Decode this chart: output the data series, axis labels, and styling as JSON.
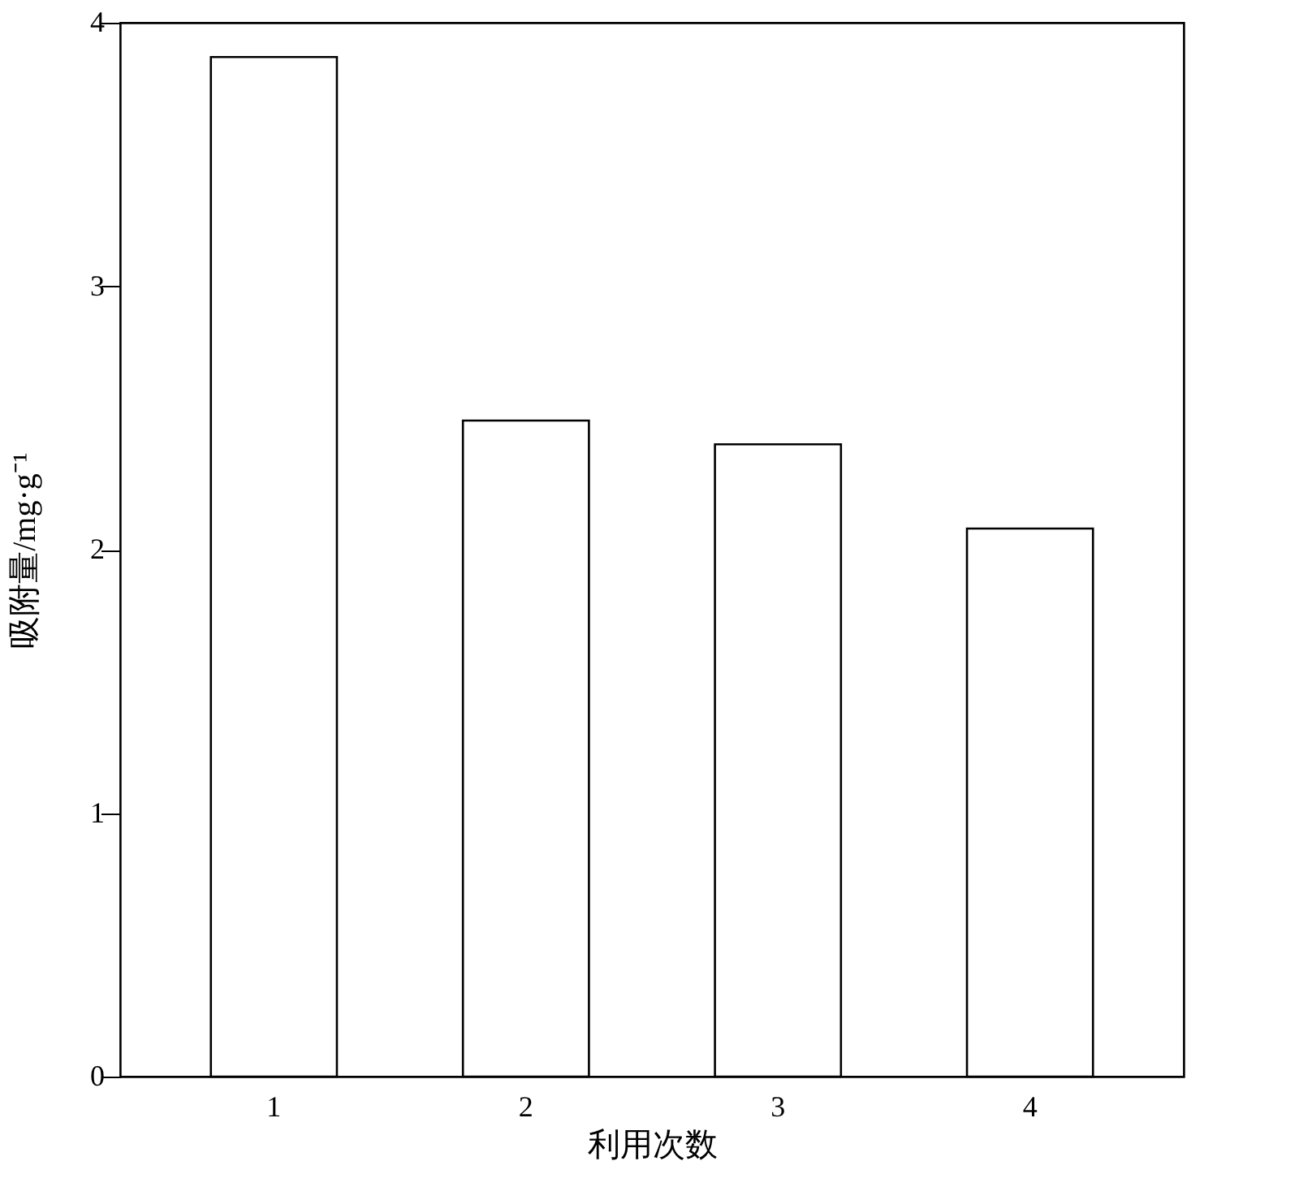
{
  "chart_data": {
    "type": "bar",
    "xlabel": "利用次数",
    "ylabel": "吸附量/mg·g⁻¹",
    "categories": [
      "1",
      "2",
      "3",
      "4"
    ],
    "series": [
      {
        "color": "#ffffff",
        "values": [
          3.87,
          2.49,
          2.4,
          2.08
        ]
      }
    ],
    "ylim": [
      0,
      4
    ],
    "yticks": [
      0,
      1,
      2,
      3,
      4
    ],
    "grid": false,
    "legend": false
  }
}
